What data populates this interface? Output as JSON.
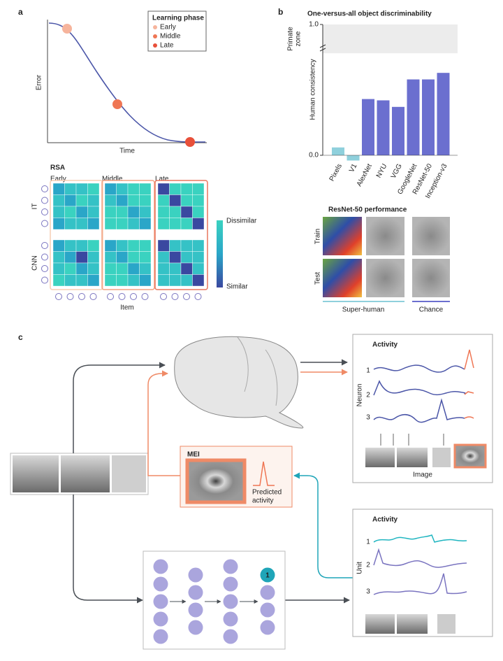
{
  "panel_a": {
    "label": "a",
    "ylabel": "Error",
    "xlabel": "Time",
    "legend": {
      "title": "Learning phase",
      "items": [
        "Early",
        "Middle",
        "Late"
      ],
      "colors": [
        "#f6b49c",
        "#ef7654",
        "#e8503a"
      ]
    },
    "rsa": {
      "title": "RSA",
      "columns": [
        "Early",
        "Middle",
        "Late"
      ],
      "rows": [
        "IT",
        "CNN"
      ],
      "xlabel": "Item",
      "colorbar": [
        "Dissimilar",
        "Similar"
      ]
    }
  },
  "chart_data": {
    "type": "bar",
    "label": "b",
    "title": "One-versus-all object discriminability",
    "ylabel": "Human consistency",
    "zone_label": [
      "Primate",
      "zone"
    ],
    "zone": [
      0.78,
      1.0
    ],
    "categories": [
      "Pixels",
      "V1",
      "AlexNet",
      "NYU",
      "VGG",
      "GoogleNet",
      "ResNet-50",
      "Inception-v3"
    ],
    "values": [
      0.06,
      -0.04,
      0.43,
      0.42,
      0.37,
      0.58,
      0.58,
      0.63
    ],
    "colors": [
      "#8fd0dc",
      "#8fd0dc",
      "#6b6fcf",
      "#6b6fcf",
      "#6b6fcf",
      "#6b6fcf",
      "#6b6fcf",
      "#6b6fcf"
    ],
    "ylim": [
      0,
      1
    ],
    "yticks": [
      {
        "value": 0,
        "label": "0.0"
      },
      {
        "value": 1,
        "label": "1.0"
      }
    ]
  },
  "resnet": {
    "title": "ResNet-50 performance",
    "rows": [
      "Train",
      "Test"
    ],
    "groups": [
      "Super-human",
      "Chance"
    ]
  },
  "panel_c": {
    "label": "c",
    "activity_top": {
      "title": "Activity",
      "ylabel": "Neuron",
      "rows": [
        "1",
        "2",
        "3"
      ],
      "xlabel": "Image"
    },
    "mei": {
      "title": "MEI",
      "caption": [
        "Predicted",
        "activity"
      ]
    },
    "activity_bottom": {
      "title": "Activity",
      "ylabel": "Unit",
      "rows": [
        "1",
        "2",
        "3"
      ]
    },
    "unit_badge": "1"
  }
}
